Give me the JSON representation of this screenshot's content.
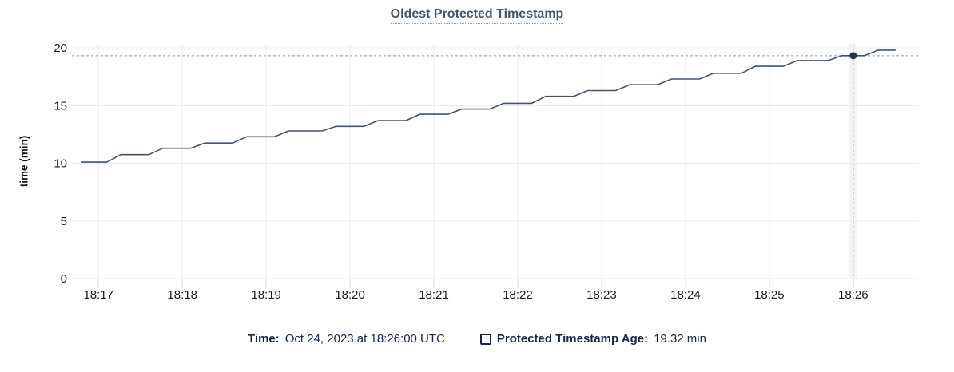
{
  "chart": {
    "title": "Oldest Protected Timestamp",
    "y_axis_label": "time (min)"
  },
  "legend": {
    "time_label": "Time:",
    "time_value": "Oct 24, 2023 at 18:26:00 UTC",
    "series_label": "Protected Timestamp Age:",
    "series_value": "19.32 min"
  },
  "colors": {
    "line": "#43546e",
    "point": "#22344e",
    "crosshair": "#a4b9c6",
    "grid": "#ececec",
    "tick_stub": "#dcdcdc",
    "hover_band": "#ececec",
    "tick_text": "#1c1c1c",
    "title_text": "#44586f",
    "legend_text": "#152849"
  },
  "chart_data": {
    "type": "line",
    "title": "Oldest Protected Timestamp",
    "xlabel": "",
    "ylabel": "time (min)",
    "ylim": [
      0,
      20
    ],
    "y_ticks": [
      0,
      5,
      10,
      15,
      20
    ],
    "x_ticks": [
      "18:17",
      "18:18",
      "18:19",
      "18:20",
      "18:21",
      "18:22",
      "18:23",
      "18:24",
      "18:25",
      "18:26"
    ],
    "x_window": [
      "18:16:41",
      "18:26:47"
    ],
    "grid": true,
    "legend_position": "bottom",
    "series": [
      {
        "name": "Protected Timestamp Age",
        "unit": "min",
        "points": [
          [
            "18:16:48",
            10.1
          ],
          [
            "18:17:06",
            10.1
          ],
          [
            "18:17:16",
            10.75
          ],
          [
            "18:17:36",
            10.75
          ],
          [
            "18:17:46",
            11.3
          ],
          [
            "18:18:06",
            11.3
          ],
          [
            "18:18:16",
            11.75
          ],
          [
            "18:18:36",
            11.75
          ],
          [
            "18:18:46",
            12.3
          ],
          [
            "18:19:06",
            12.3
          ],
          [
            "18:19:16",
            12.8
          ],
          [
            "18:19:40",
            12.8
          ],
          [
            "18:19:50",
            13.2
          ],
          [
            "18:20:10",
            13.2
          ],
          [
            "18:20:20",
            13.7
          ],
          [
            "18:20:40",
            13.7
          ],
          [
            "18:20:50",
            14.25
          ],
          [
            "18:21:10",
            14.25
          ],
          [
            "18:21:20",
            14.7
          ],
          [
            "18:21:40",
            14.7
          ],
          [
            "18:21:50",
            15.2
          ],
          [
            "18:22:10",
            15.2
          ],
          [
            "18:22:20",
            15.8
          ],
          [
            "18:22:40",
            15.8
          ],
          [
            "18:22:50",
            16.3
          ],
          [
            "18:23:10",
            16.3
          ],
          [
            "18:23:20",
            16.8
          ],
          [
            "18:23:40",
            16.8
          ],
          [
            "18:23:50",
            17.3
          ],
          [
            "18:24:10",
            17.3
          ],
          [
            "18:24:20",
            17.8
          ],
          [
            "18:24:40",
            17.8
          ],
          [
            "18:24:50",
            18.4
          ],
          [
            "18:25:10",
            18.4
          ],
          [
            "18:25:20",
            18.9
          ],
          [
            "18:25:42",
            18.9
          ],
          [
            "18:25:52",
            19.32
          ],
          [
            "18:26:08",
            19.32
          ],
          [
            "18:26:18",
            19.8
          ],
          [
            "18:26:30",
            19.8
          ]
        ]
      }
    ],
    "hover": {
      "time": "18:26:00",
      "value": 19.32,
      "value_label": "19.32 min"
    }
  }
}
